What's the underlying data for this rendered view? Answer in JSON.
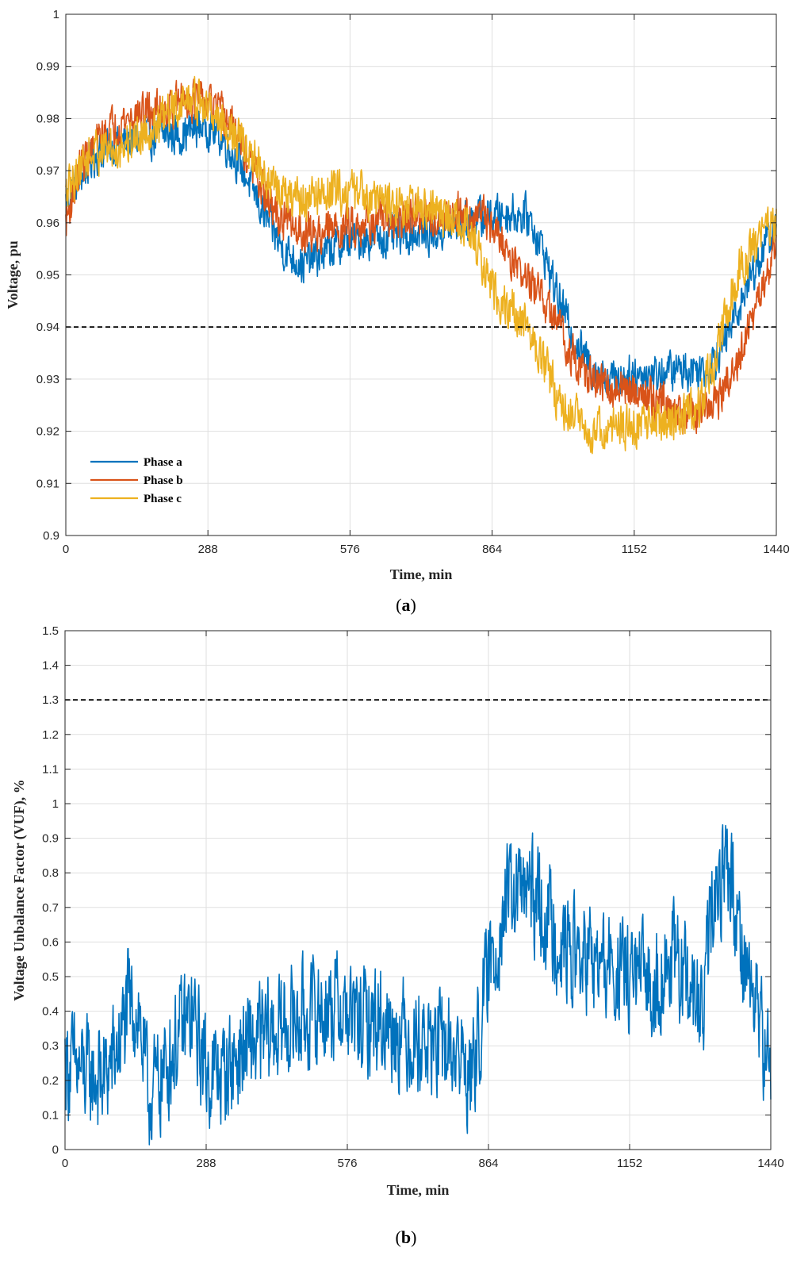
{
  "chart_data": [
    {
      "type": "line",
      "id": "a",
      "caption_open": "(",
      "caption_letter": "a",
      "caption_close": ")",
      "xlabel": "Time, min",
      "ylabel": "Voltage, pu",
      "xlim": [
        0,
        1440
      ],
      "ylim": [
        0.9,
        1.0
      ],
      "xticks": [
        0,
        288,
        576,
        864,
        1152,
        1440
      ],
      "yticks": [
        0.9,
        0.91,
        0.92,
        0.93,
        0.94,
        0.95,
        0.96,
        0.97,
        0.98,
        0.99,
        1
      ],
      "grid": true,
      "legend_position": "bottom-left",
      "reference_line": {
        "y": 0.94,
        "style": "dashed",
        "color": "#000000"
      },
      "series": [
        {
          "name": "Phase a",
          "color": "#0072BD",
          "noise": 0.0035,
          "keypoints": [
            [
              0,
              0.964
            ],
            [
              30,
              0.969
            ],
            [
              60,
              0.973
            ],
            [
              100,
              0.975
            ],
            [
              150,
              0.976
            ],
            [
              200,
              0.977
            ],
            [
              240,
              0.977
            ],
            [
              280,
              0.979
            ],
            [
              320,
              0.976
            ],
            [
              360,
              0.97
            ],
            [
              400,
              0.962
            ],
            [
              440,
              0.955
            ],
            [
              480,
              0.952
            ],
            [
              520,
              0.954
            ],
            [
              560,
              0.956
            ],
            [
              600,
              0.957
            ],
            [
              650,
              0.957
            ],
            [
              700,
              0.958
            ],
            [
              750,
              0.958
            ],
            [
              800,
              0.96
            ],
            [
              850,
              0.961
            ],
            [
              900,
              0.962
            ],
            [
              940,
              0.961
            ],
            [
              970,
              0.954
            ],
            [
              1000,
              0.945
            ],
            [
              1030,
              0.938
            ],
            [
              1060,
              0.933
            ],
            [
              1100,
              0.93
            ],
            [
              1150,
              0.931
            ],
            [
              1200,
              0.931
            ],
            [
              1250,
              0.932
            ],
            [
              1300,
              0.932
            ],
            [
              1340,
              0.938
            ],
            [
              1380,
              0.948
            ],
            [
              1420,
              0.956
            ],
            [
              1440,
              0.959
            ]
          ]
        },
        {
          "name": "Phase b",
          "color": "#D95319",
          "noise": 0.0035,
          "keypoints": [
            [
              0,
              0.96
            ],
            [
              30,
              0.971
            ],
            [
              60,
              0.975
            ],
            [
              100,
              0.979
            ],
            [
              150,
              0.981
            ],
            [
              200,
              0.982
            ],
            [
              250,
              0.984
            ],
            [
              300,
              0.982
            ],
            [
              340,
              0.978
            ],
            [
              380,
              0.97
            ],
            [
              420,
              0.962
            ],
            [
              460,
              0.959
            ],
            [
              500,
              0.958
            ],
            [
              560,
              0.959
            ],
            [
              600,
              0.96
            ],
            [
              650,
              0.96
            ],
            [
              700,
              0.961
            ],
            [
              750,
              0.961
            ],
            [
              800,
              0.962
            ],
            [
              850,
              0.961
            ],
            [
              880,
              0.957
            ],
            [
              920,
              0.951
            ],
            [
              960,
              0.946
            ],
            [
              1000,
              0.94
            ],
            [
              1040,
              0.932
            ],
            [
              1080,
              0.929
            ],
            [
              1120,
              0.928
            ],
            [
              1160,
              0.928
            ],
            [
              1200,
              0.926
            ],
            [
              1240,
              0.924
            ],
            [
              1280,
              0.923
            ],
            [
              1320,
              0.926
            ],
            [
              1360,
              0.932
            ],
            [
              1400,
              0.944
            ],
            [
              1440,
              0.955
            ]
          ]
        },
        {
          "name": "Phase c",
          "color": "#EDB120",
          "noise": 0.0038,
          "keypoints": [
            [
              0,
              0.965
            ],
            [
              30,
              0.971
            ],
            [
              60,
              0.974
            ],
            [
              100,
              0.974
            ],
            [
              150,
              0.977
            ],
            [
              200,
              0.98
            ],
            [
              250,
              0.984
            ],
            [
              300,
              0.981
            ],
            [
              340,
              0.977
            ],
            [
              380,
              0.972
            ],
            [
              420,
              0.967
            ],
            [
              460,
              0.964
            ],
            [
              500,
              0.965
            ],
            [
              560,
              0.966
            ],
            [
              600,
              0.966
            ],
            [
              650,
              0.964
            ],
            [
              700,
              0.963
            ],
            [
              750,
              0.962
            ],
            [
              800,
              0.96
            ],
            [
              830,
              0.956
            ],
            [
              850,
              0.95
            ],
            [
              880,
              0.945
            ],
            [
              920,
              0.942
            ],
            [
              960,
              0.935
            ],
            [
              1000,
              0.926
            ],
            [
              1050,
              0.921
            ],
            [
              1100,
              0.92
            ],
            [
              1150,
              0.921
            ],
            [
              1200,
              0.922
            ],
            [
              1240,
              0.922
            ],
            [
              1280,
              0.924
            ],
            [
              1320,
              0.935
            ],
            [
              1360,
              0.95
            ],
            [
              1400,
              0.957
            ],
            [
              1440,
              0.96
            ]
          ]
        }
      ]
    },
    {
      "type": "line",
      "id": "b",
      "caption_open": "(",
      "caption_letter": "b",
      "caption_close": ")",
      "xlabel": "Time, min",
      "ylabel": "Voltage Unbalance Factor (VUF), %",
      "xlim": [
        0,
        1440
      ],
      "ylim": [
        0,
        1.5
      ],
      "xticks": [
        0,
        288,
        576,
        864,
        1152,
        1440
      ],
      "yticks": [
        0,
        0.1,
        0.2,
        0.3,
        0.4,
        0.5,
        0.6,
        0.7,
        0.8,
        0.9,
        1,
        1.1,
        1.2,
        1.3,
        1.4,
        1.5
      ],
      "grid": true,
      "reference_line": {
        "y": 1.3,
        "style": "dashed",
        "color": "#000000"
      },
      "series": [
        {
          "name": "VUF",
          "color": "#0072BD",
          "noise": 0.14,
          "keypoints": [
            [
              0,
              0.25
            ],
            [
              40,
              0.22
            ],
            [
              80,
              0.2
            ],
            [
              110,
              0.3
            ],
            [
              130,
              0.42
            ],
            [
              150,
              0.4
            ],
            [
              170,
              0.15
            ],
            [
              200,
              0.22
            ],
            [
              240,
              0.35
            ],
            [
              260,
              0.38
            ],
            [
              290,
              0.22
            ],
            [
              320,
              0.22
            ],
            [
              360,
              0.28
            ],
            [
              400,
              0.32
            ],
            [
              440,
              0.35
            ],
            [
              480,
              0.38
            ],
            [
              520,
              0.4
            ],
            [
              560,
              0.42
            ],
            [
              600,
              0.36
            ],
            [
              640,
              0.38
            ],
            [
              700,
              0.33
            ],
            [
              760,
              0.3
            ],
            [
              800,
              0.28
            ],
            [
              830,
              0.2
            ],
            [
              860,
              0.48
            ],
            [
              900,
              0.72
            ],
            [
              940,
              0.75
            ],
            [
              980,
              0.68
            ],
            [
              1020,
              0.58
            ],
            [
              1060,
              0.55
            ],
            [
              1100,
              0.52
            ],
            [
              1150,
              0.5
            ],
            [
              1200,
              0.48
            ],
            [
              1240,
              0.55
            ],
            [
              1280,
              0.45
            ],
            [
              1300,
              0.38
            ],
            [
              1320,
              0.68
            ],
            [
              1350,
              0.85
            ],
            [
              1380,
              0.6
            ],
            [
              1410,
              0.42
            ],
            [
              1440,
              0.2
            ]
          ]
        }
      ]
    }
  ]
}
